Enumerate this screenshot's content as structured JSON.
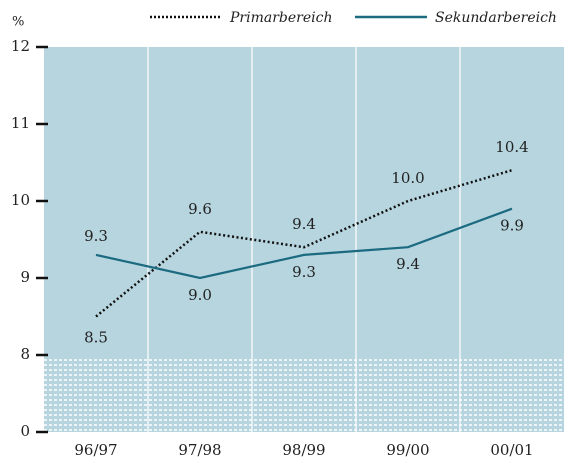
{
  "chart_data": {
    "type": "line",
    "y_unit": "%",
    "categories": [
      "96/97",
      "97/98",
      "98/99",
      "99/00",
      "00/01"
    ],
    "series": [
      {
        "name": "Primarbereich",
        "color": "#111111",
        "dash": "dotted",
        "values": [
          8.5,
          9.6,
          9.4,
          10.0,
          10.4
        ],
        "value_labels": [
          "8.5",
          "9.6",
          "9.4",
          "10.0",
          "10.4"
        ]
      },
      {
        "name": "Sekundarbereich",
        "color": "#1b6a80",
        "dash": "solid",
        "values": [
          9.3,
          9.0,
          9.3,
          9.4,
          9.9
        ],
        "value_labels": [
          "9.3",
          "9.0",
          "9.3",
          "9.4",
          "9.9"
        ]
      }
    ],
    "ylim": [
      0,
      12
    ],
    "axis_break": [
      0,
      8
    ],
    "yticks": [
      0,
      8,
      9,
      10,
      11,
      12
    ],
    "grid": "x",
    "background": "#b7d5df"
  }
}
